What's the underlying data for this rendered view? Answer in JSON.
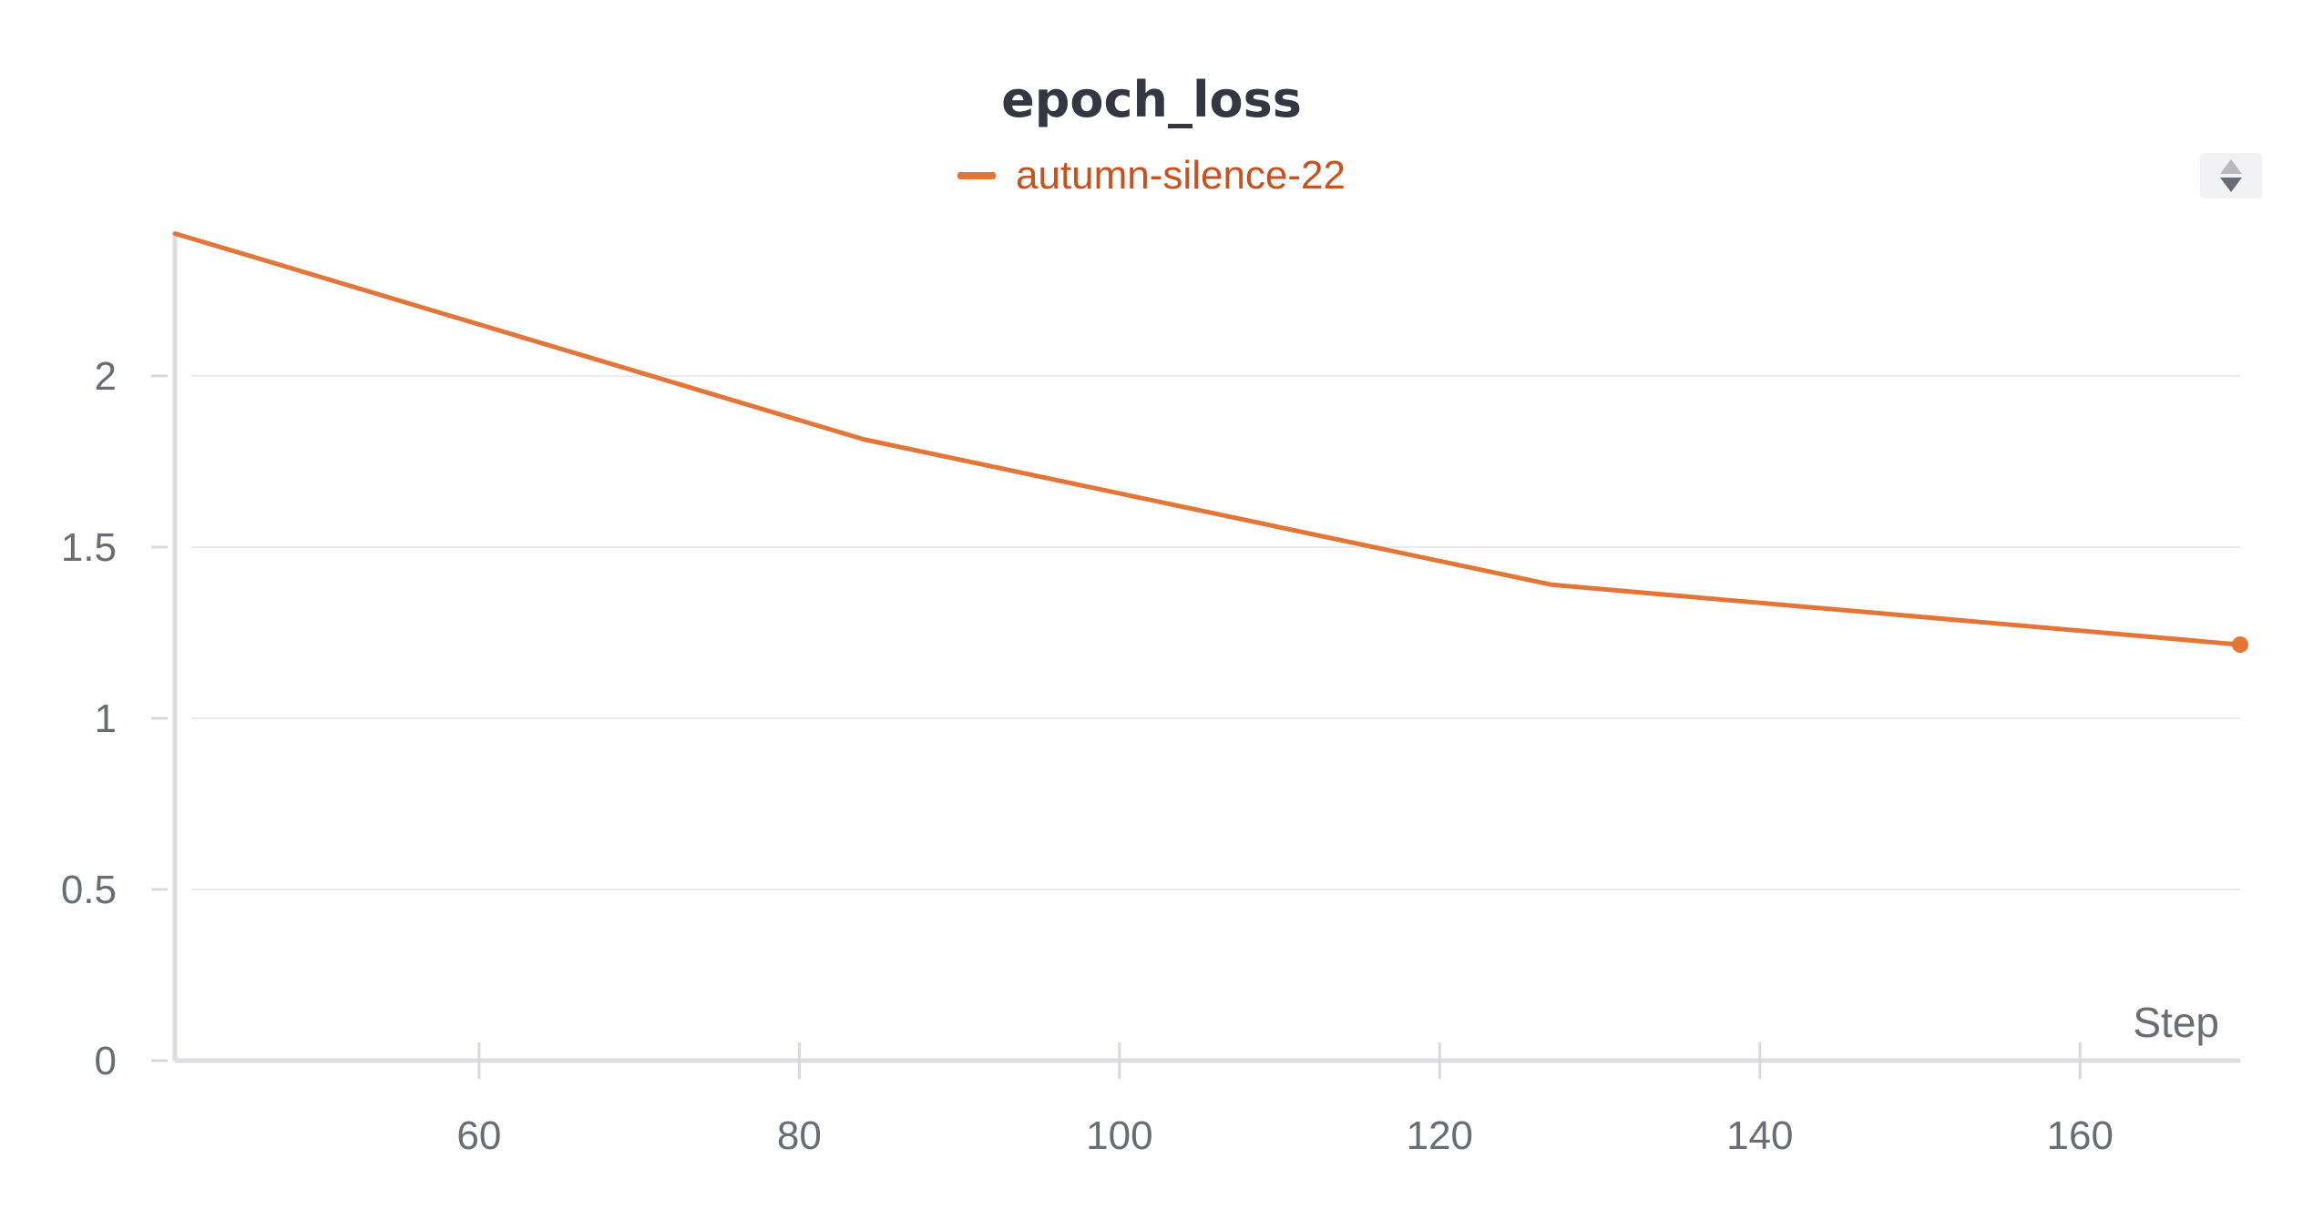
{
  "chart_data": {
    "type": "line",
    "title": "epoch_loss",
    "xlabel": "Step",
    "ylabel": "",
    "xlim": [
      41,
      170
    ],
    "ylim": [
      0,
      2.42
    ],
    "x_ticks": [
      60,
      80,
      100,
      120,
      140,
      160
    ],
    "y_ticks": [
      0,
      0.5,
      1,
      1.5,
      2
    ],
    "x_tick_labels": [
      "60",
      "80",
      "100",
      "120",
      "140",
      "160"
    ],
    "y_tick_labels": [
      "0",
      "0.5",
      "1",
      "1.5",
      "2"
    ],
    "grid": true,
    "legend_position": "top-center",
    "series": [
      {
        "name": "autumn-silence-22",
        "color": "#e37536",
        "x": [
          41,
          84,
          127,
          170
        ],
        "y": [
          2.416,
          1.815,
          1.39,
          1.215
        ]
      }
    ]
  },
  "legend": {
    "label": "autumn-silence-22",
    "color": "#e37536"
  },
  "controls": {
    "sort_icon": "sort-up-down-icon"
  }
}
